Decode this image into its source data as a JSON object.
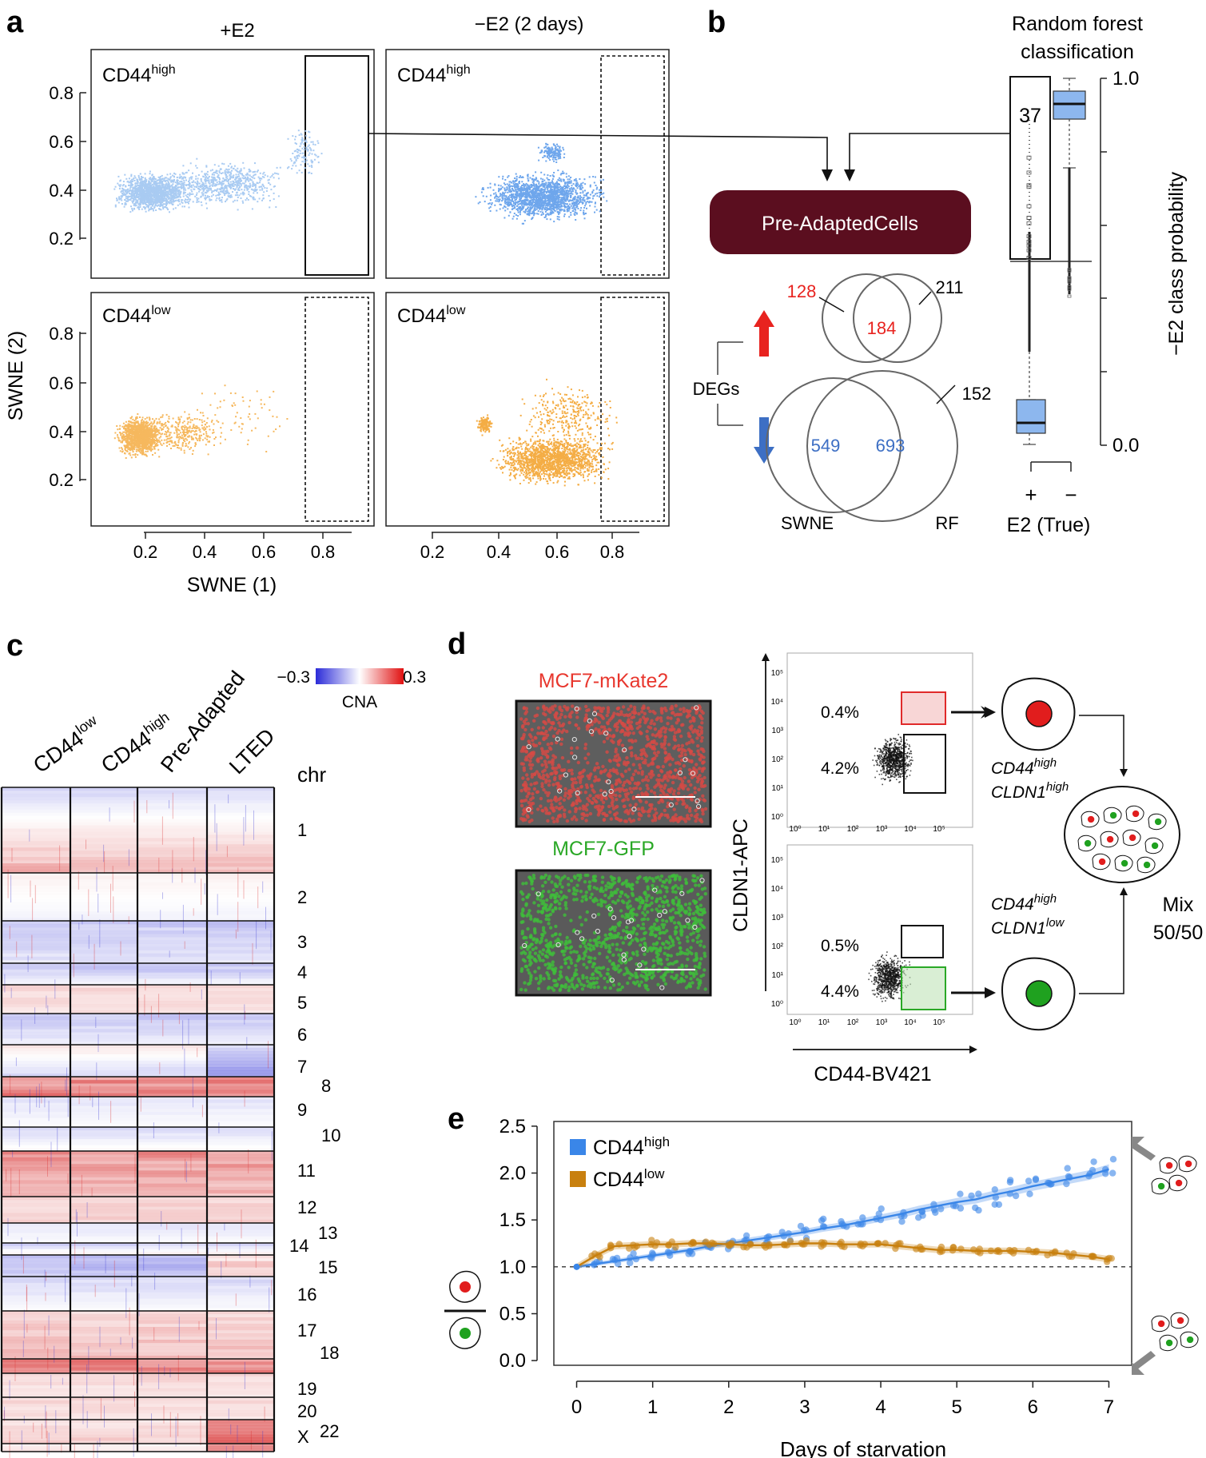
{
  "panel_labels": {
    "a": "a",
    "b": "b",
    "c": "c",
    "d": "d",
    "e": "e"
  },
  "panel_a": {
    "col_titles": [
      "+E2",
      "−E2 (2 days)"
    ],
    "facets": [
      {
        "label": "CD44",
        "sup": "high",
        "color": "#a9cbf2"
      },
      {
        "label": "CD44",
        "sup": "high",
        "color": "#6ea6ec"
      },
      {
        "label": "CD44",
        "sup": "low",
        "color": "#f6b85e"
      },
      {
        "label": "CD44",
        "sup": "low",
        "color": "#f4ad45"
      }
    ],
    "y_ticks": [
      "0.8",
      "0.6",
      "0.4",
      "0.2"
    ],
    "x_ticks": [
      "0.2",
      "0.4",
      "0.6",
      "0.8"
    ],
    "xlabel": "SWNE (1)",
    "ylabel": "SWNE (2)"
  },
  "panel_b": {
    "rf_title_line1": "Random forest",
    "rf_title_line2": "classification",
    "box_number": "37",
    "right_ticks": [
      "1.0",
      "0.0"
    ],
    "right_label": "−E2 class probability",
    "xticks": [
      "+",
      "−"
    ],
    "xlabel": "E2 (True)",
    "center_label": "Pre-AdaptedCells",
    "degs_label": "DEGs",
    "up_counts": {
      "left": "128",
      "center": "184",
      "right": "211"
    },
    "down_counts": {
      "left": "549",
      "center": "693",
      "right": "152"
    },
    "set_labels": [
      "SWNE",
      "RF"
    ],
    "colors": {
      "up": "#e8231f",
      "down": "#3d6fc4",
      "maroon": "#5b0e1f",
      "blue_box": "#8db7ee"
    }
  },
  "panel_c": {
    "col_labels": [
      "CD44",
      "CD44",
      "Pre-Adapted",
      "LTED"
    ],
    "col_sups": [
      "low",
      "high",
      "",
      ""
    ],
    "colorbar_min": "−0.3",
    "colorbar_max": "0.3",
    "colorbar_label": "CNA",
    "chr_title": "chr",
    "chromosomes": [
      "1",
      "2",
      "3",
      "4",
      "5",
      "6",
      "7",
      "8",
      "9",
      "10",
      "11",
      "12",
      "13",
      "14",
      "15",
      "16",
      "17",
      "18",
      "19",
      "20",
      "X",
      "22"
    ]
  },
  "panel_d": {
    "img1_title": "MCF7-mKate2",
    "img2_title": "MCF7-GFP",
    "ylabel": "CLDN1-APC",
    "xlabel": "CD44-BV421",
    "top_pcts": [
      "0.4%",
      "4.2%"
    ],
    "bottom_pcts": [
      "0.5%",
      "4.4%"
    ],
    "axis_ticks": [
      "10⁰",
      "10¹",
      "10²",
      "10³",
      "10⁴",
      "10⁵"
    ],
    "pop1": {
      "l1": "CD44",
      "s1": "high",
      "l2": "CLDN1",
      "s2": "high"
    },
    "pop2": {
      "l1": "CD44",
      "s1": "high",
      "l2": "CLDN1",
      "s2": "low"
    },
    "mix_label_1": "Mix",
    "mix_label_2": "50/50"
  },
  "panel_e": {
    "xlabel": "Days of starvation",
    "legend": [
      {
        "label": "CD44",
        "sup": "high",
        "color": "#3a86e8"
      },
      {
        "label": "CD44",
        "sup": "low",
        "color": "#c8800f"
      }
    ],
    "chart_data": {
      "type": "line",
      "x": [
        0,
        0.25,
        0.5,
        0.75,
        1,
        1.25,
        1.5,
        1.75,
        2,
        2.25,
        2.5,
        2.75,
        3,
        3.25,
        3.5,
        3.75,
        4,
        4.25,
        4.5,
        4.75,
        5,
        5.25,
        5.5,
        5.75,
        6,
        6.25,
        6.5,
        6.75,
        7
      ],
      "series": [
        {
          "name": "CD44 high",
          "color": "#3a86e8",
          "values": [
            1.0,
            1.03,
            1.06,
            1.09,
            1.12,
            1.15,
            1.18,
            1.22,
            1.25,
            1.28,
            1.31,
            1.34,
            1.37,
            1.41,
            1.44,
            1.48,
            1.52,
            1.56,
            1.61,
            1.65,
            1.69,
            1.72,
            1.77,
            1.81,
            1.86,
            1.9,
            1.94,
            1.98,
            2.04
          ]
        },
        {
          "name": "CD44 low",
          "color": "#c8800f",
          "values": [
            1.0,
            1.12,
            1.22,
            1.23,
            1.24,
            1.24,
            1.25,
            1.25,
            1.24,
            1.23,
            1.23,
            1.24,
            1.25,
            1.25,
            1.24,
            1.24,
            1.24,
            1.22,
            1.2,
            1.18,
            1.18,
            1.17,
            1.17,
            1.17,
            1.16,
            1.15,
            1.13,
            1.11,
            1.08
          ]
        }
      ],
      "title": "",
      "xlabel": "Days of starvation",
      "ylabel": "",
      "xticks": [
        0,
        1,
        2,
        3,
        4,
        5,
        6,
        7
      ],
      "yticks": [
        0.0,
        0.5,
        1.0,
        1.5,
        2.0,
        2.5
      ],
      "xlim": [
        -0.3,
        7.3
      ],
      "ylim": [
        -0.05,
        2.55
      ],
      "reference_line": 1.0
    }
  }
}
